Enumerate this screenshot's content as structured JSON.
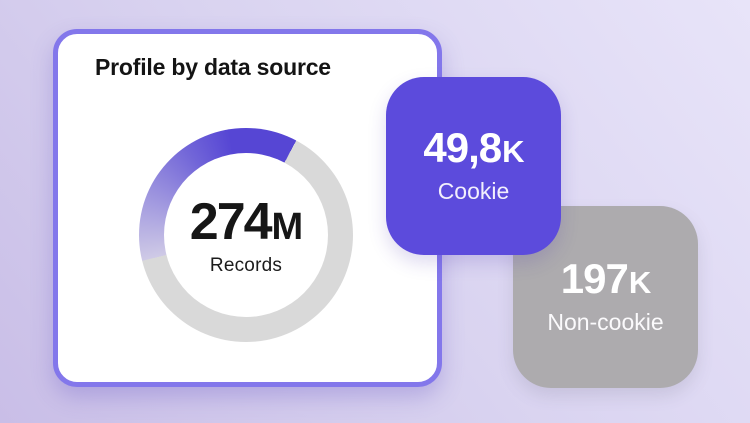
{
  "chart_data": {
    "type": "pie",
    "donut": true,
    "title": "Profile by data source",
    "categories": [
      "Cookie",
      "Non-cookie"
    ],
    "values": [
      49800,
      197000
    ],
    "value_labels": [
      "49,8K",
      "197K"
    ],
    "center_value": "274M",
    "center_label": "Records",
    "legend_position": "none",
    "arc_visual_fraction": 0.37
  },
  "background": {
    "gradient_from": "#C9BEE7",
    "gradient_to": "#E8E4F9"
  },
  "profile_card": {
    "title": "Profile by data source",
    "border_color": "#8377EB",
    "donut": {
      "value": "274",
      "unit": "M",
      "label": "Records",
      "track_color": "#D9D9D9",
      "arc_color": "#5646D4",
      "arc_mid_color": "#7165D8",
      "arc_tail_color": "#CFCAE6",
      "arc_start_deg": 256,
      "arc_sweep_deg": 132
    }
  },
  "stat_cards": {
    "cookie": {
      "value": "49,8",
      "unit": "K",
      "label": "Cookie",
      "bg_color": "#5C4BDC",
      "text_color": "#FFFFFF"
    },
    "non_cookie": {
      "value": "197",
      "unit": "K",
      "label": "Non-cookie",
      "bg_color": "#ADABAE",
      "text_color": "#FFFFFF"
    }
  }
}
